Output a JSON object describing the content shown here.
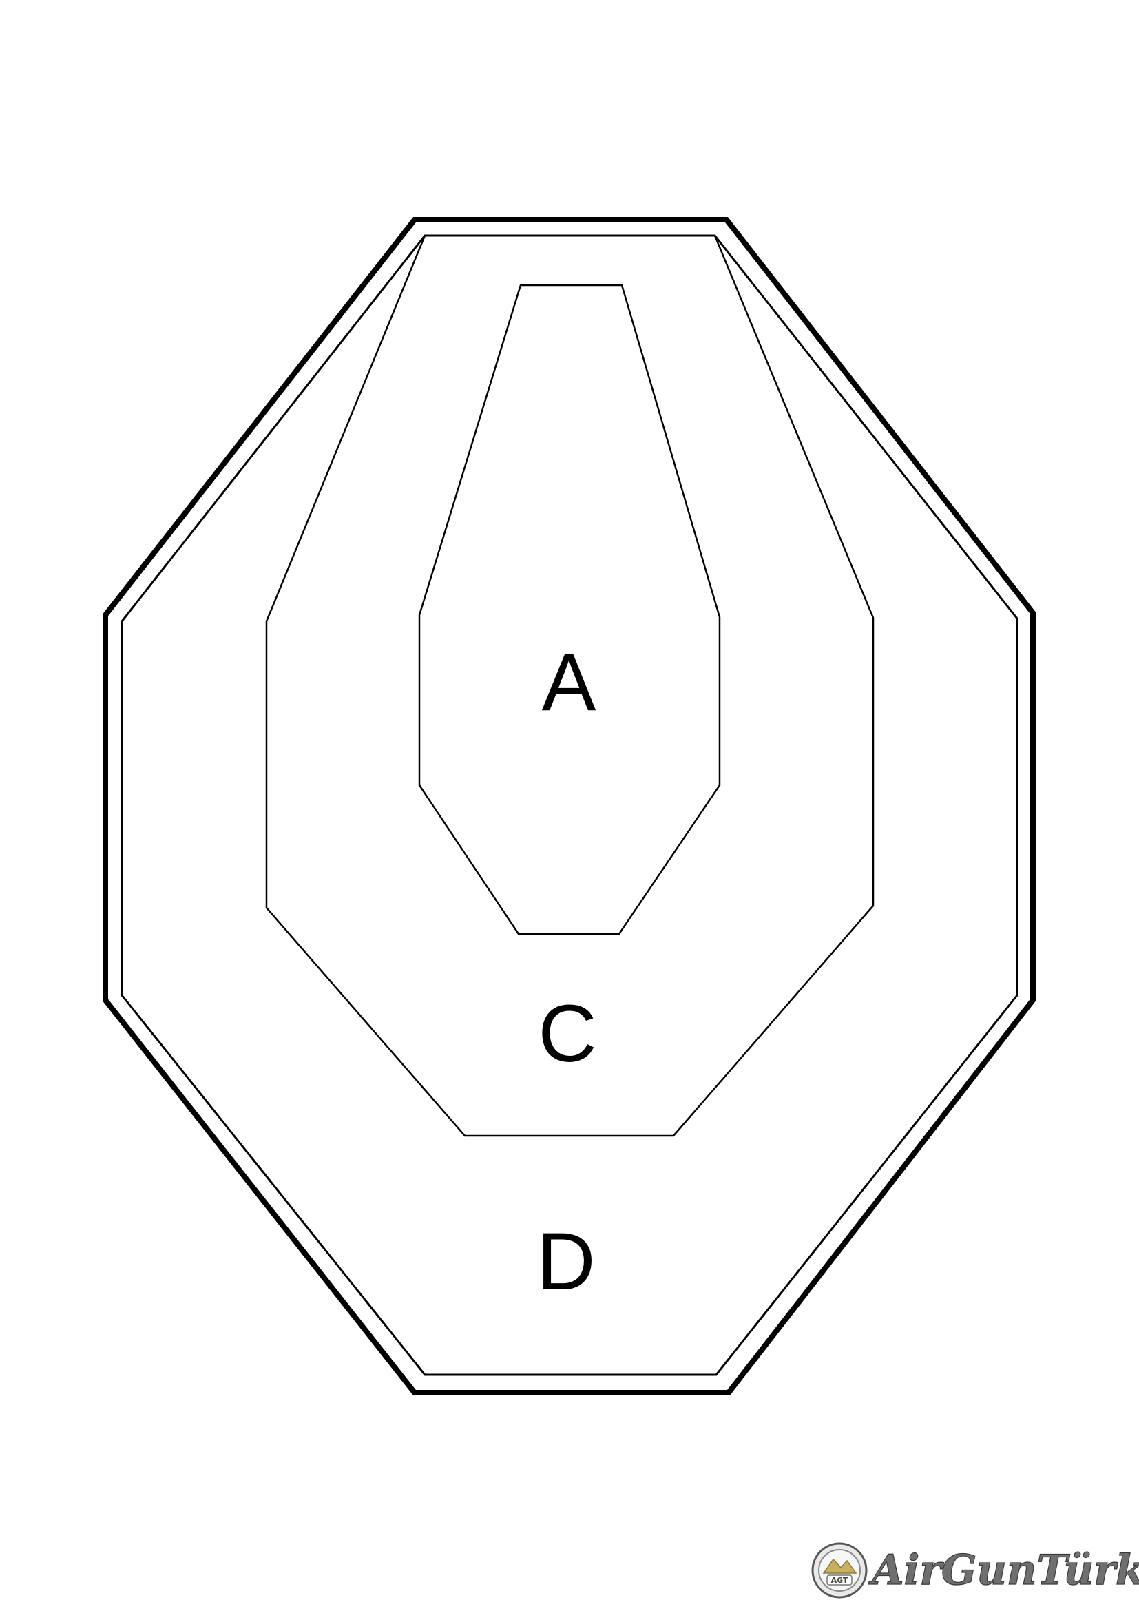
{
  "target": {
    "zones": [
      {
        "id": "A",
        "label": "A"
      },
      {
        "id": "C",
        "label": "C"
      },
      {
        "id": "D",
        "label": "D"
      }
    ],
    "line_color": "#000000",
    "background_color": "#ffffff"
  },
  "logo": {
    "brand_text": "AirGunTürk",
    "emblem_text": "AGT",
    "emblem_icon": "airgunturk-emblem-icon",
    "text_color": "#6f6f6f"
  }
}
